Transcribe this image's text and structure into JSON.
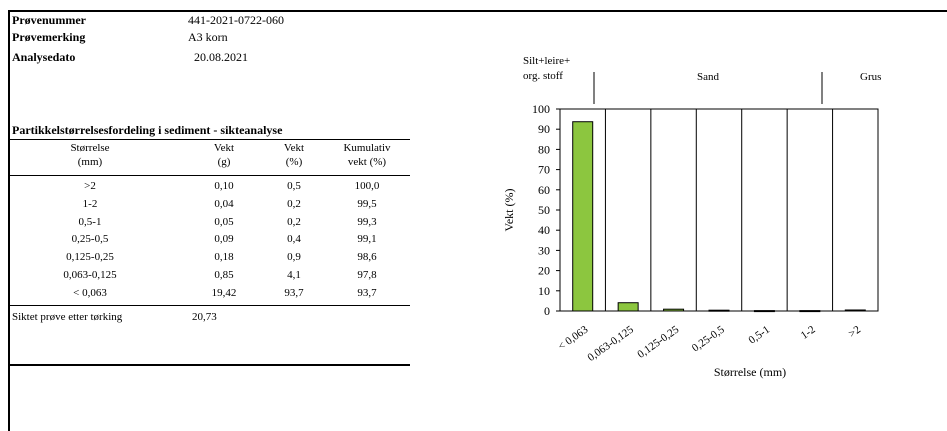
{
  "meta": {
    "rows": [
      {
        "label": "Prøvenummer",
        "value": "441-2021-0722-060"
      },
      {
        "label": "Prøvemerking",
        "value": "A3 korn"
      },
      {
        "label": "Analysedato",
        "value": "20.08.2021"
      }
    ]
  },
  "table": {
    "title": "Partikkelstørrelsesfordeling i sediment - sikteanalyse",
    "headers": [
      {
        "line1": "Størrelse",
        "line2": "(mm)"
      },
      {
        "line1": "Vekt",
        "line2": "(g)"
      },
      {
        "line1": "Vekt",
        "line2": "(%)"
      },
      {
        "line1": "Kumulativ",
        "line2": "vekt (%)"
      }
    ],
    "rows": [
      [
        ">2",
        "0,10",
        "0,5",
        "100,0"
      ],
      [
        "1-2",
        "0,04",
        "0,2",
        "99,5"
      ],
      [
        "0,5-1",
        "0,05",
        "0,2",
        "99,3"
      ],
      [
        "0,25-0,5",
        "0,09",
        "0,4",
        "99,1"
      ],
      [
        "0,125-0,25",
        "0,18",
        "0,9",
        "98,6"
      ],
      [
        "0,063-0,125",
        "0,85",
        "4,1",
        "97,8"
      ],
      [
        "< 0,063",
        "19,42",
        "93,7",
        "93,7"
      ]
    ],
    "summary_label": "Siktet prøve etter tørking",
    "summary_value": "20,73"
  },
  "chart_data": {
    "type": "bar",
    "categories": [
      "< 0,063",
      "0,063-0,125",
      "0,125-0,25",
      "0,25-0,5",
      "0,5-1",
      "1-2",
      ">2"
    ],
    "values": [
      93.7,
      4.1,
      0.9,
      0.4,
      0.2,
      0.2,
      0.5
    ],
    "ylabel": "Vekt (%)",
    "xlabel": "Størrelse (mm)",
    "ylim": [
      0,
      100
    ],
    "yticks": [
      0,
      10,
      20,
      30,
      40,
      50,
      60,
      70,
      80,
      90,
      100
    ],
    "bar_color": "#8cc63f",
    "regions": [
      "Silt+leire+",
      "org. stoff",
      "Sand",
      "Grus"
    ]
  }
}
